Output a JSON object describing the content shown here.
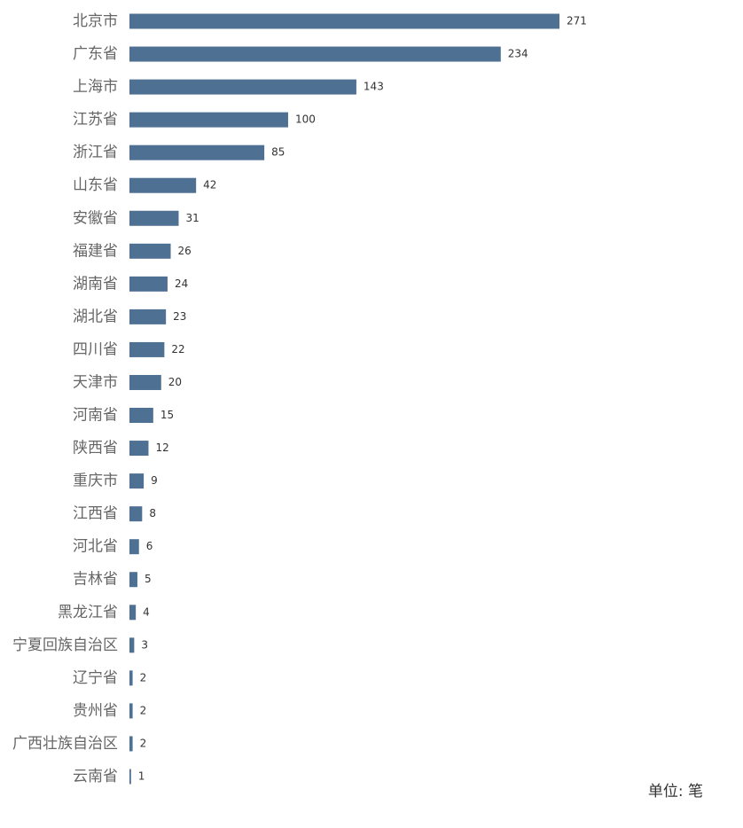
{
  "chart_data": {
    "type": "bar",
    "orientation": "horizontal",
    "categories": [
      "北京市",
      "广东省",
      "上海市",
      "江苏省",
      "浙江省",
      "山东省",
      "安徽省",
      "福建省",
      "湖南省",
      "湖北省",
      "四川省",
      "天津市",
      "河南省",
      "陕西省",
      "重庆市",
      "江西省",
      "河北省",
      "吉林省",
      "黑龙江省",
      "宁夏回族自治区",
      "辽宁省",
      "贵州省",
      "广西壮族自治区",
      "云南省"
    ],
    "values": [
      271,
      234,
      143,
      100,
      85,
      42,
      31,
      26,
      24,
      23,
      22,
      20,
      15,
      12,
      9,
      8,
      6,
      5,
      4,
      3,
      2,
      2,
      2,
      1
    ],
    "color": "#4e7093",
    "unit_label": "单位: 笔"
  }
}
